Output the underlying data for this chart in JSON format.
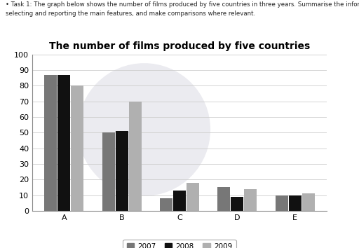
{
  "title": "The number of films produced by five countries",
  "categories": [
    "A",
    "B",
    "C",
    "D",
    "E"
  ],
  "years": [
    "2007",
    "2008",
    "2009"
  ],
  "values": {
    "2007": [
      87,
      50,
      8,
      15,
      10
    ],
    "2008": [
      87,
      51,
      13,
      9,
      10
    ],
    "2009": [
      80,
      70,
      18,
      14,
      11
    ]
  },
  "colors": {
    "2007": "#777777",
    "2008": "#111111",
    "2009": "#b0b0b0"
  },
  "ylim": [
    0,
    100
  ],
  "yticks": [
    0,
    10,
    20,
    30,
    40,
    50,
    60,
    70,
    80,
    90,
    100
  ],
  "task_text_line1": "• Task 1: The graph below shows the number of films produced by five countries in three years. Summarise the information by",
  "task_text_line2": "selecting and reporting the main features, and make comparisons where relevant.",
  "background_color": "#ffffff",
  "watermark_color": "#ebebf0",
  "grid_color": "#cccccc",
  "bar_width": 0.22,
  "title_fontsize": 10,
  "tick_fontsize": 8,
  "legend_fontsize": 7.5,
  "text_fontsize": 6.2
}
